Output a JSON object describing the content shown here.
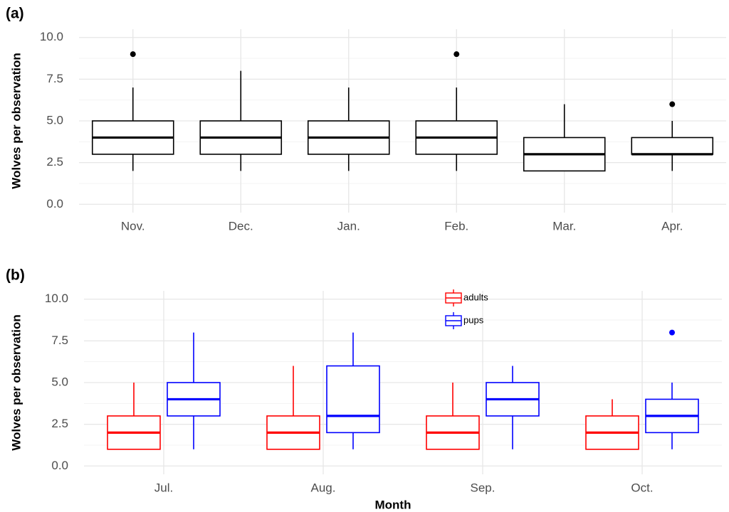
{
  "chart_data": [
    {
      "type": "box",
      "panel_label": "(a)",
      "y_label": "Wolves per observation",
      "categories": [
        "Nov.",
        "Dec.",
        "Jan.",
        "Feb.",
        "Mar.",
        "Apr."
      ],
      "series": [
        {
          "color": "#000000",
          "min": [
            2,
            2,
            2,
            2,
            2,
            2
          ],
          "q1": [
            3,
            3,
            3,
            3,
            2,
            3
          ],
          "median": [
            4,
            4,
            4,
            4,
            3,
            3
          ],
          "q3": [
            5,
            5,
            5,
            5,
            4,
            4
          ],
          "max": [
            7,
            8,
            7,
            7,
            6,
            5
          ],
          "outliers": [
            [
              9
            ],
            [],
            [],
            [
              9
            ],
            [],
            [
              6
            ]
          ]
        }
      ],
      "ylim": [
        -0.5,
        10.5
      ],
      "yticks": [
        {
          "value": 0,
          "label": "0.0"
        },
        2.5,
        {
          "value": 5,
          "label": "5.0"
        },
        7.5,
        {
          "value": 10,
          "label": "10.0"
        }
      ],
      "grid": true
    },
    {
      "type": "box",
      "panel_label": "(b)",
      "y_label": "Wolves per observation",
      "x_label": "Month",
      "categories": [
        "Jul.",
        "Aug.",
        "Sep.",
        "Oct."
      ],
      "series": [
        {
          "name": "adults",
          "color": "#ff0000",
          "min": [
            1,
            1,
            1,
            1
          ],
          "q1": [
            1,
            1,
            1,
            1
          ],
          "median": [
            2,
            2,
            2,
            2
          ],
          "q3": [
            3,
            3,
            3,
            3
          ],
          "max": [
            5,
            6,
            5,
            4
          ],
          "outliers": [
            [],
            [],
            [],
            []
          ]
        },
        {
          "name": "pups",
          "color": "#0000ff",
          "min": [
            1,
            1,
            1,
            1
          ],
          "q1": [
            3,
            2,
            3,
            2
          ],
          "median": [
            4,
            3,
            4,
            3
          ],
          "q3": [
            5,
            6,
            5,
            4
          ],
          "max": [
            8,
            8,
            6,
            5
          ],
          "outliers": [
            [],
            [],
            [],
            [
              8
            ]
          ]
        }
      ],
      "ylim": [
        -0.5,
        10.5
      ],
      "yticks": [
        {
          "value": 0,
          "label": "0.0"
        },
        2.5,
        {
          "value": 5,
          "label": "5.0"
        },
        7.5,
        {
          "value": 10,
          "label": "10.0"
        }
      ],
      "grid": true,
      "legend": "top"
    }
  ]
}
